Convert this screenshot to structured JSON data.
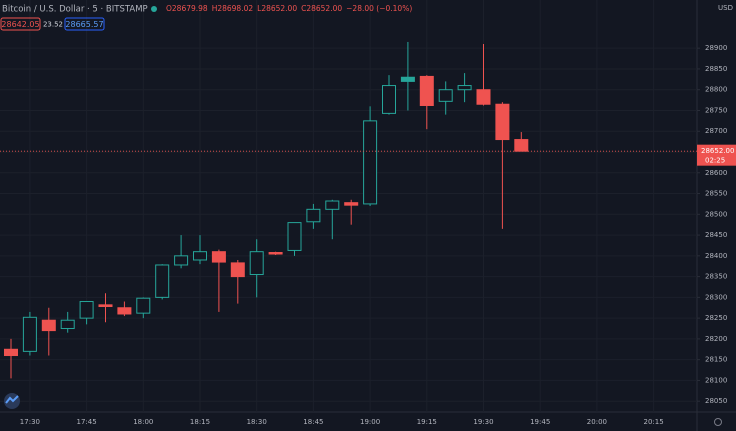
{
  "chart_data": {
    "type": "candlestick",
    "symbol": "Bitcoin / U.S. Dollar · 5 · BITSTAMP",
    "ohlc_legend": [
      "O28679.98",
      "H28698.02",
      "L28652.00",
      "C28652.00",
      "−28.00 (−0.10%)"
    ],
    "badges": [
      "28642.05",
      "23.52",
      "28665.57"
    ],
    "currency": "USD",
    "last_price": 28652,
    "last_price_label": "28652.00",
    "countdown": "02:25",
    "style": "hollow",
    "up_color": "#26a69a",
    "down_color": "#ef5350",
    "grid": true,
    "open": [
      28175,
      28170,
      28245,
      28225,
      28250,
      28282,
      28275,
      28262,
      28300,
      28378,
      28390,
      28410,
      28383,
      28355,
      28408,
      28413,
      28482,
      28512,
      28528,
      28525,
      28743,
      28830,
      28832,
      28772,
      28800,
      28800,
      28765,
      28679.98
    ],
    "high": [
      28200,
      28265,
      28275,
      28265,
      28290,
      28310,
      28290,
      28300,
      28380,
      28450,
      28450,
      28415,
      28390,
      28440,
      28410,
      28480,
      28525,
      28535,
      28535,
      28760,
      28835,
      28915,
      28835,
      28820,
      28840,
      28910,
      28770,
      28698.02
    ],
    "low": [
      28105,
      28160,
      28160,
      28215,
      28235,
      28240,
      28255,
      28250,
      28295,
      28370,
      28380,
      28265,
      28285,
      28300,
      28402,
      28400,
      28465,
      28440,
      28475,
      28520,
      28740,
      28750,
      28705,
      28740,
      28770,
      28762,
      28465,
      28652
    ],
    "close": [
      28160,
      28252,
      28220,
      28245,
      28290,
      28278,
      28260,
      28298,
      28378,
      28400,
      28410,
      28385,
      28350,
      28410,
      28405,
      28480,
      28512,
      28532,
      28522,
      28725,
      28810,
      28820,
      28762,
      28800,
      28810,
      28765,
      28680,
      28652
    ],
    "x_labels": [
      "17:30",
      "17:45",
      "18:00",
      "18:15",
      "18:30",
      "18:45",
      "19:00",
      "19:15",
      "19:30",
      "19:45",
      "20:00",
      "20:15"
    ],
    "ylim": [
      28024,
      29016
    ],
    "yticks": [
      28050,
      28100,
      28150,
      28200,
      28250,
      28300,
      28350,
      28400,
      28450,
      28500,
      28550,
      28600,
      28650,
      28700,
      28750,
      28800,
      28850,
      28900
    ]
  }
}
